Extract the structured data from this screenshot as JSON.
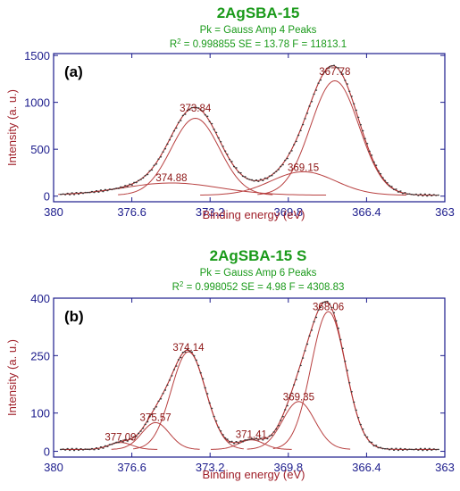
{
  "chart_data": [
    {
      "type": "line",
      "title": "2AgSBA-15",
      "fit_line": "Pk = Gauss Amp  4 Peaks",
      "stats": {
        "r2_prefix": "R",
        "r2_sup": "2",
        "r2_value": " = 0.998855  SE = 13.78  F = 11813.1"
      },
      "panel_label": "(a)",
      "xlabel": "Binding energy (eV)",
      "ylabel": "Intensity (a. u.)",
      "xlim": [
        380,
        363
      ],
      "ylim": [
        -60,
        1520
      ],
      "xticks": [
        "380",
        "376.6",
        "373.2",
        "369.8",
        "366.4",
        "363"
      ],
      "xtick_values": [
        380,
        376.6,
        373.2,
        369.8,
        366.4,
        363
      ],
      "yticks": [
        "0",
        "500",
        "1000",
        "1500"
      ],
      "ytick_values": [
        0,
        500,
        1000,
        1500
      ],
      "peaks": [
        {
          "label": "373.84",
          "center": 373.84,
          "amplitude": 820,
          "sigma": 1.05,
          "label_y": 900
        },
        {
          "label": "374.88",
          "center": 374.88,
          "amplitude": 130,
          "sigma": 2.1,
          "label_y": 160
        },
        {
          "label": "369.15",
          "center": 369.15,
          "amplitude": 250,
          "sigma": 1.4,
          "label_y": 270
        },
        {
          "label": "367.78",
          "center": 367.78,
          "amplitude": 1220,
          "sigma": 1.05,
          "label_y": 1290
        }
      ],
      "baseline": 10
    },
    {
      "type": "line",
      "title": "2AgSBA-15 S",
      "fit_line": "Pk = Gauss Amp  6 Peaks",
      "stats": {
        "r2_prefix": "R",
        "r2_sup": "2",
        "r2_value": " = 0.998052  SE = 4.98  F = 4308.83"
      },
      "panel_label": "(b)",
      "xlabel": "Binding energy (eV)",
      "ylabel": "Intensity (a. u.)",
      "xlim": [
        380,
        363
      ],
      "ylim": [
        -15,
        400
      ],
      "xticks": [
        "380",
        "376.6",
        "373.2",
        "369.8",
        "366.4",
        "363"
      ],
      "xtick_values": [
        380,
        376.6,
        373.2,
        369.8,
        366.4,
        363
      ],
      "yticks": [
        "0",
        "100",
        "250",
        "400"
      ],
      "ytick_values": [
        0,
        100,
        250,
        400
      ],
      "peaks": [
        {
          "label": "377.09",
          "center": 377.09,
          "amplitude": 18,
          "sigma": 0.5,
          "label_y": 28
        },
        {
          "label": "375.57",
          "center": 375.57,
          "amplitude": 70,
          "sigma": 0.6,
          "label_y": 80
        },
        {
          "label": "374.14",
          "center": 374.14,
          "amplitude": 255,
          "sigma": 0.75,
          "label_y": 263
        },
        {
          "label": "371.41",
          "center": 371.41,
          "amplitude": 25,
          "sigma": 0.55,
          "label_y": 35
        },
        {
          "label": "369.35",
          "center": 369.35,
          "amplitude": 125,
          "sigma": 0.7,
          "label_y": 133
        },
        {
          "label": "368.06",
          "center": 368.06,
          "amplitude": 360,
          "sigma": 0.75,
          "label_y": 368
        }
      ],
      "baseline": 5
    }
  ],
  "colors": {
    "title": "#1a9a1a",
    "axis": "#1c1c8c",
    "axis_label": "#a0202a",
    "peak": "#b84040",
    "envelope": "#b03030",
    "data": "#3a3a3a"
  }
}
